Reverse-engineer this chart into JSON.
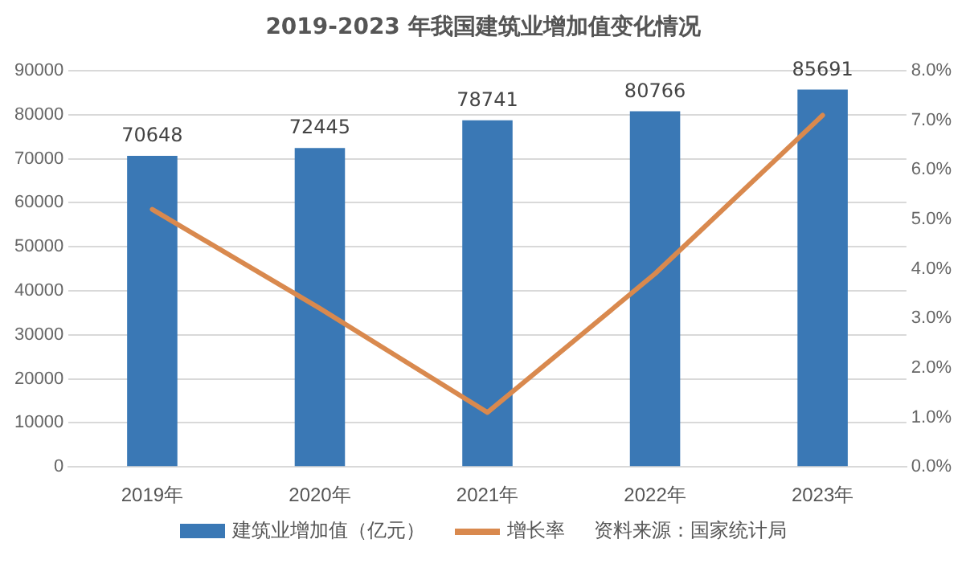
{
  "chart_data": {
    "type": "bar",
    "title": "2019-2023 年我国建筑业增加值变化情况",
    "categories": [
      "2019年",
      "2020年",
      "2021年",
      "2022年",
      "2023年"
    ],
    "series": [
      {
        "name": "建筑业增加值（亿元）",
        "color": "#3a78b5",
        "values": [
          70648,
          72445,
          78741,
          80766,
          85691
        ],
        "value_labels": [
          "70648",
          "72445",
          "78741",
          "80766",
          "85691"
        ]
      },
      {
        "name": "增长率",
        "type": "line",
        "axis": "y2",
        "color": "#d9894e",
        "values": [
          5.2,
          3.2,
          1.1,
          3.9,
          7.1
        ]
      }
    ],
    "ylim": [
      0,
      90000
    ],
    "yticks": [
      0,
      10000,
      20000,
      30000,
      40000,
      50000,
      60000,
      70000,
      80000,
      90000
    ],
    "y2lim": [
      0,
      8
    ],
    "y2ticks": [
      {
        "value": 0,
        "label": "0.0%"
      },
      {
        "value": 1,
        "label": "1.0%"
      },
      {
        "value": 2,
        "label": "2.0%"
      },
      {
        "value": 3,
        "label": "3.0%"
      },
      {
        "value": 4,
        "label": "4.0%"
      },
      {
        "value": 5,
        "label": "5.0%"
      },
      {
        "value": 6,
        "label": "6.0%"
      },
      {
        "value": 7,
        "label": "7.0%"
      },
      {
        "value": 8,
        "label": "8.0%"
      }
    ],
    "grid": "y",
    "legend": "bottom",
    "marker": "none",
    "line_style": "solid",
    "annotations": [
      "资料来源：国家统计局"
    ]
  }
}
